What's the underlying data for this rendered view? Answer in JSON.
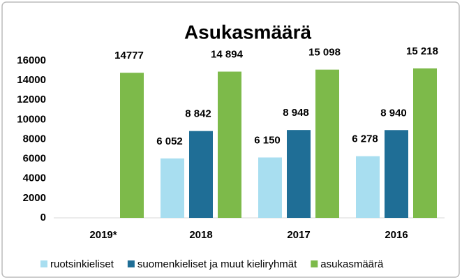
{
  "chart_data": {
    "type": "bar",
    "title": "Asukasmäärä",
    "categories": [
      "2019*",
      "2018",
      "2017",
      "2016"
    ],
    "series": [
      {
        "name": "ruotsinkieliset",
        "color": "#a8def0",
        "values": [
          null,
          6052,
          6150,
          6278
        ],
        "value_labels": [
          null,
          "6 052",
          "6 150",
          "6 278"
        ]
      },
      {
        "name": "suomenkieliset ja muut kieliryhmät",
        "color": "#1f6e96",
        "values": [
          null,
          8842,
          8948,
          8940
        ],
        "value_labels": [
          null,
          "8 842",
          "8 948",
          "8 940"
        ]
      },
      {
        "name": "asukasmäärä",
        "color": "#7dba4a",
        "values": [
          14777,
          14894,
          15098,
          15218
        ],
        "value_labels": [
          "14777",
          "14 894",
          "15 098",
          "15 218"
        ]
      }
    ],
    "ylim": [
      0,
      16000
    ],
    "yticks": [
      0,
      2000,
      4000,
      6000,
      8000,
      10000,
      12000,
      14000,
      16000
    ],
    "grid": false,
    "legend": "bottom"
  }
}
